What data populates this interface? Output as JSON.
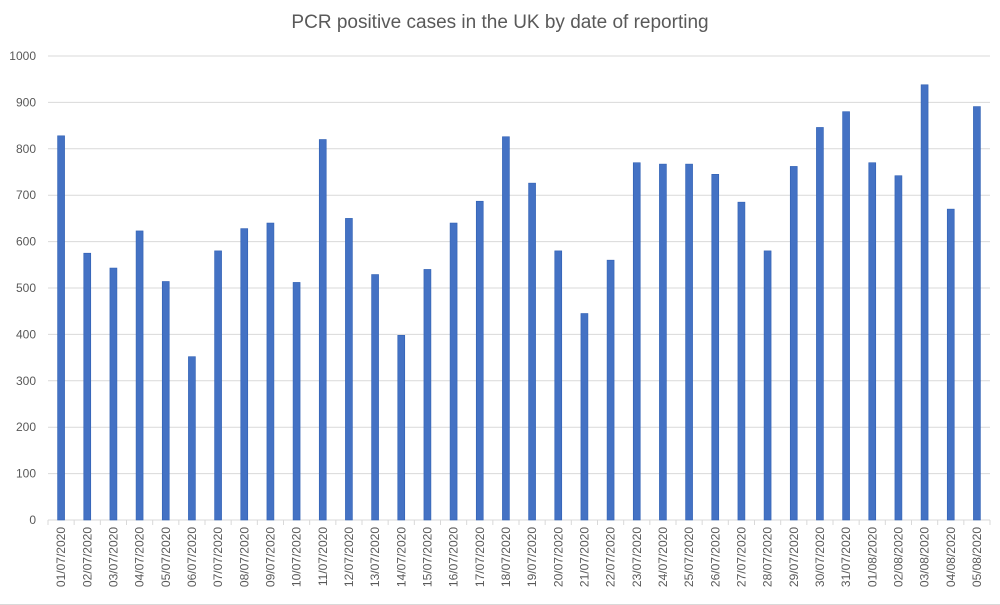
{
  "chart_data": {
    "type": "bar",
    "title": "PCR positive cases in the UK by date of reporting",
    "xlabel": "",
    "ylabel": "",
    "ylim": [
      0,
      1000
    ],
    "yticks": [
      0,
      100,
      200,
      300,
      400,
      500,
      600,
      700,
      800,
      900,
      1000
    ],
    "grid": true,
    "bar_color": "#4472c4",
    "categories": [
      "01/07/2020",
      "02/07/2020",
      "03/07/2020",
      "04/07/2020",
      "05/07/2020",
      "06/07/2020",
      "07/07/2020",
      "08/07/2020",
      "09/07/2020",
      "10/07/2020",
      "11/07/2020",
      "12/07/2020",
      "13/07/2020",
      "14/07/2020",
      "15/07/2020",
      "16/07/2020",
      "17/07/2020",
      "18/07/2020",
      "19/07/2020",
      "20/07/2020",
      "21/07/2020",
      "22/07/2020",
      "23/07/2020",
      "24/07/2020",
      "25/07/2020",
      "26/07/2020",
      "27/07/2020",
      "28/07/2020",
      "29/07/2020",
      "30/07/2020",
      "31/07/2020",
      "01/08/2020",
      "02/08/2020",
      "03/08/2020",
      "04/08/2020",
      "05/08/2020"
    ],
    "values": [
      828,
      575,
      543,
      623,
      514,
      352,
      580,
      628,
      640,
      512,
      820,
      650,
      529,
      398,
      540,
      640,
      687,
      826,
      726,
      580,
      445,
      560,
      770,
      767,
      767,
      745,
      685,
      580,
      762,
      846,
      880,
      770,
      742,
      938,
      670,
      891
    ]
  }
}
